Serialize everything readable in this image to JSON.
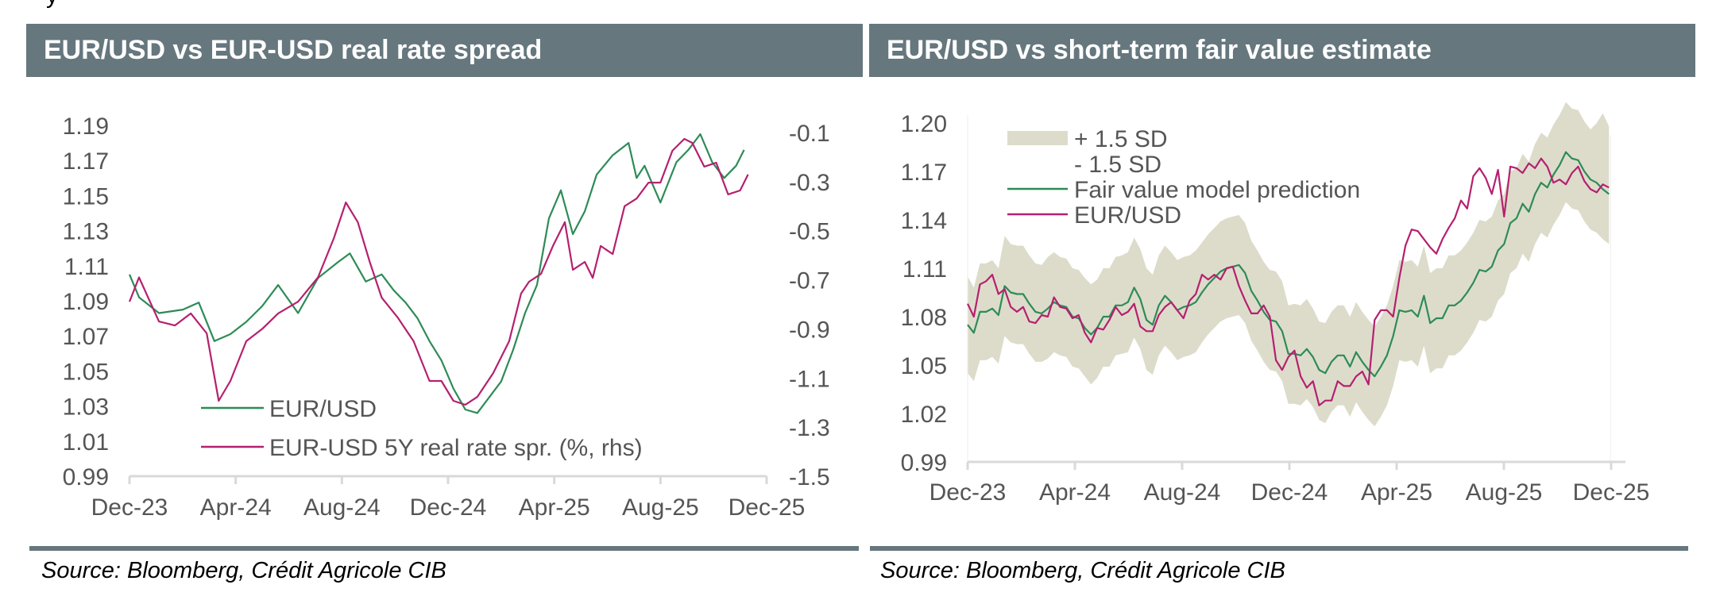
{
  "page": {
    "stray_fragment": "y"
  },
  "colors": {
    "header_bg": "#66777e",
    "green": "#2e8b57",
    "magenta": "#b5206f",
    "band": "#dddccb",
    "axis": "#d9d9d9",
    "tick_text": "#555555"
  },
  "panels": [
    {
      "title": "EUR/USD vs EUR-USD real rate spread",
      "source": "Source: Bloomberg, Crédit Agricole CIB"
    },
    {
      "title": "EUR/USD vs short-term fair value estimate",
      "source": "Source: Bloomberg, Crédit Agricole CIB"
    }
  ],
  "chart_data": [
    {
      "type": "line",
      "title": "EUR/USD vs EUR-USD real rate spread",
      "xlabel": "",
      "ylabel": "",
      "x_tick_labels": [
        "Dec-23",
        "Apr-24",
        "Aug-24",
        "Dec-24",
        "Apr-25",
        "Aug-25",
        "Dec-25"
      ],
      "ylim": [
        0.99,
        1.19
      ],
      "y_tick_labels": [
        "1.19",
        "1.17",
        "1.15",
        "1.13",
        "1.11",
        "1.09",
        "1.07",
        "1.05",
        "1.03",
        "1.01",
        "0.99"
      ],
      "y2lim": [
        -1.5,
        -0.1
      ],
      "y2_tick_labels": [
        "-0.1",
        "-0.3",
        "-0.5",
        "-0.7",
        "-0.9",
        "-1.1",
        "-1.3",
        "-1.5"
      ],
      "x_range_months": [
        0,
        24
      ],
      "grid": false,
      "legend_position": "bottom-left",
      "series": [
        {
          "name": "EUR/USD",
          "axis": "left",
          "color": "#2e8b57",
          "x_months": [
            0.0,
            0.36,
            1.11,
            2.01,
            2.61,
            3.2,
            3.8,
            4.4,
            5.0,
            5.6,
            6.35,
            7.1,
            7.85,
            8.3,
            8.9,
            9.5,
            9.95,
            10.4,
            10.85,
            11.3,
            11.75,
            12.2,
            12.65,
            13.1,
            13.55,
            14.0,
            14.45,
            14.9,
            15.35,
            15.8,
            16.25,
            16.7,
            17.15,
            17.6,
            18.2,
            18.8,
            19.1,
            19.4,
            20.0,
            20.6,
            21.05,
            21.5,
            21.95,
            22.4,
            22.85,
            23.15
          ],
          "values": [
            1.105,
            1.092,
            1.083,
            1.085,
            1.089,
            1.067,
            1.071,
            1.078,
            1.087,
            1.099,
            1.083,
            1.103,
            1.112,
            1.117,
            1.101,
            1.105,
            1.096,
            1.089,
            1.08,
            1.067,
            1.056,
            1.04,
            1.028,
            1.026,
            1.035,
            1.044,
            1.062,
            1.083,
            1.099,
            1.137,
            1.153,
            1.128,
            1.141,
            1.162,
            1.173,
            1.18,
            1.16,
            1.167,
            1.146,
            1.169,
            1.176,
            1.185,
            1.169,
            1.16,
            1.167,
            1.176
          ]
        },
        {
          "name": "EUR-USD 5Y real rate spr. (%, rhs)",
          "axis": "right",
          "color": "#b5206f",
          "x_months": [
            0.0,
            0.36,
            1.11,
            1.71,
            2.31,
            2.91,
            3.36,
            3.8,
            4.4,
            5.0,
            5.6,
            6.35,
            7.1,
            7.7,
            8.15,
            8.6,
            9.05,
            9.5,
            10.1,
            10.7,
            11.3,
            11.75,
            12.2,
            12.65,
            13.1,
            13.7,
            14.3,
            14.75,
            15.05,
            15.5,
            15.95,
            16.4,
            16.7,
            17.15,
            17.45,
            17.75,
            18.2,
            18.65,
            19.1,
            19.55,
            20.0,
            20.45,
            20.9,
            21.2,
            21.65,
            22.1,
            22.55,
            23.0,
            23.3
          ],
          "values": [
            -0.789,
            -0.69,
            -0.87,
            -0.886,
            -0.837,
            -0.918,
            -1.193,
            -1.112,
            -0.95,
            -0.9,
            -0.837,
            -0.789,
            -0.69,
            -0.53,
            -0.385,
            -0.465,
            -0.627,
            -0.773,
            -0.853,
            -0.95,
            -1.112,
            -1.112,
            -1.193,
            -1.209,
            -1.177,
            -1.08,
            -0.95,
            -0.756,
            -0.708,
            -0.676,
            -0.562,
            -0.465,
            -0.659,
            -0.627,
            -0.692,
            -0.562,
            -0.595,
            -0.4,
            -0.369,
            -0.304,
            -0.304,
            -0.174,
            -0.126,
            -0.142,
            -0.239,
            -0.223,
            -0.352,
            -0.336,
            -0.271
          ]
        }
      ]
    },
    {
      "type": "area",
      "title": "EUR/USD vs short-term fair value estimate",
      "xlabel": "",
      "ylabel": "",
      "x_tick_labels": [
        "Dec-23",
        "Apr-24",
        "Aug-24",
        "Dec-24",
        "Apr-25",
        "Aug-25",
        "Dec-25"
      ],
      "ylim": [
        0.99,
        1.2
      ],
      "y_tick_labels": [
        "1.20",
        "1.17",
        "1.14",
        "1.11",
        "1.08",
        "1.05",
        "1.02",
        "0.99"
      ],
      "x_range_months": [
        0,
        24
      ],
      "grid": false,
      "legend_position": "top-left",
      "legend": [
        "+ 1.5 SD",
        "- 1.5 SD",
        "Fair value model prediction",
        "EUR/USD"
      ],
      "x_months": [
        0.0,
        0.23,
        0.46,
        0.69,
        0.92,
        1.15,
        1.38,
        1.61,
        1.84,
        2.07,
        2.3,
        2.53,
        2.76,
        2.99,
        3.22,
        3.45,
        3.68,
        3.91,
        4.14,
        4.37,
        4.6,
        4.83,
        5.06,
        5.29,
        5.52,
        5.75,
        5.98,
        6.21,
        6.44,
        6.67,
        6.9,
        7.13,
        7.36,
        7.59,
        7.82,
        8.05,
        8.28,
        8.51,
        8.74,
        8.97,
        9.2,
        9.43,
        9.66,
        9.89,
        10.12,
        10.35,
        10.58,
        10.81,
        11.04,
        11.27,
        11.5,
        11.73,
        11.96,
        12.19,
        12.42,
        12.65,
        12.88,
        13.11,
        13.34,
        13.57,
        13.8,
        14.03,
        14.26,
        14.49,
        14.72,
        14.95,
        15.18,
        15.41,
        15.64,
        15.87,
        16.1,
        16.33,
        16.56,
        16.79,
        17.02,
        17.25,
        17.48,
        17.71,
        17.94,
        18.17,
        18.4,
        18.63,
        18.86,
        19.09,
        19.32,
        19.55,
        19.78,
        20.01,
        20.24,
        20.47,
        20.7,
        20.93,
        21.16,
        21.39,
        21.62,
        21.85,
        22.08,
        22.31,
        22.54,
        22.77,
        23.0,
        23.23,
        23.46,
        23.69,
        23.92
      ],
      "series": [
        {
          "name": "Fair value model prediction",
          "color": "#2e8b57",
          "values": [
            1.075,
            1.07,
            1.083,
            1.083,
            1.085,
            1.081,
            1.099,
            1.095,
            1.094,
            1.094,
            1.088,
            1.083,
            1.082,
            1.085,
            1.089,
            1.087,
            1.086,
            1.08,
            1.079,
            1.073,
            1.069,
            1.073,
            1.08,
            1.08,
            1.087,
            1.087,
            1.089,
            1.098,
            1.091,
            1.078,
            1.075,
            1.087,
            1.093,
            1.089,
            1.084,
            1.086,
            1.087,
            1.089,
            1.095,
            1.1,
            1.104,
            1.108,
            1.11,
            1.111,
            1.112,
            1.107,
            1.096,
            1.09,
            1.083,
            1.078,
            1.077,
            1.071,
            1.057,
            1.057,
            1.056,
            1.06,
            1.055,
            1.047,
            1.045,
            1.052,
            1.056,
            1.056,
            1.049,
            1.058,
            1.052,
            1.047,
            1.043,
            1.049,
            1.056,
            1.068,
            1.084,
            1.083,
            1.084,
            1.08,
            1.093,
            1.076,
            1.079,
            1.079,
            1.087,
            1.087,
            1.09,
            1.095,
            1.101,
            1.109,
            1.108,
            1.111,
            1.121,
            1.125,
            1.138,
            1.141,
            1.15,
            1.145,
            1.156,
            1.163,
            1.16,
            1.168,
            1.174,
            1.182,
            1.178,
            1.177,
            1.17,
            1.165,
            1.163,
            1.159,
            1.156
          ]
        },
        {
          "name": "EUR/USD",
          "color": "#b5206f",
          "values": [
            1.088,
            1.08,
            1.1,
            1.102,
            1.106,
            1.094,
            1.097,
            1.086,
            1.083,
            1.086,
            1.077,
            1.076,
            1.081,
            1.08,
            1.092,
            1.086,
            1.085,
            1.079,
            1.081,
            1.07,
            1.064,
            1.073,
            1.072,
            1.078,
            1.086,
            1.081,
            1.083,
            1.088,
            1.074,
            1.071,
            1.071,
            1.081,
            1.086,
            1.089,
            1.084,
            1.079,
            1.09,
            1.094,
            1.106,
            1.103,
            1.106,
            1.103,
            1.11,
            1.111,
            1.099,
            1.09,
            1.082,
            1.082,
            1.087,
            1.08,
            1.053,
            1.047,
            1.055,
            1.059,
            1.043,
            1.036,
            1.04,
            1.025,
            1.028,
            1.028,
            1.04,
            1.037,
            1.037,
            1.043,
            1.046,
            1.038,
            1.078,
            1.084,
            1.084,
            1.08,
            1.104,
            1.124,
            1.134,
            1.133,
            1.128,
            1.123,
            1.119,
            1.128,
            1.135,
            1.141,
            1.152,
            1.147,
            1.167,
            1.172,
            1.166,
            1.156,
            1.171,
            1.142,
            1.173,
            1.172,
            1.169,
            1.175,
            1.172,
            1.178,
            1.173,
            1.163,
            1.165,
            1.162,
            1.169,
            1.173,
            1.164,
            1.159,
            1.157,
            1.162,
            1.16
          ]
        }
      ],
      "band": {
        "name": "+/- 1.5 SD",
        "color": "#dddccb",
        "upper": [
          1.105,
          1.098,
          1.113,
          1.113,
          1.115,
          1.11,
          1.13,
          1.125,
          1.124,
          1.124,
          1.118,
          1.113,
          1.112,
          1.117,
          1.12,
          1.117,
          1.116,
          1.11,
          1.109,
          1.104,
          1.1,
          1.103,
          1.11,
          1.11,
          1.117,
          1.118,
          1.12,
          1.129,
          1.122,
          1.11,
          1.106,
          1.118,
          1.124,
          1.12,
          1.115,
          1.117,
          1.118,
          1.121,
          1.126,
          1.131,
          1.135,
          1.139,
          1.141,
          1.142,
          1.143,
          1.138,
          1.127,
          1.121,
          1.114,
          1.109,
          1.108,
          1.102,
          1.087,
          1.088,
          1.087,
          1.091,
          1.085,
          1.077,
          1.076,
          1.083,
          1.087,
          1.087,
          1.08,
          1.089,
          1.083,
          1.078,
          1.074,
          1.08,
          1.087,
          1.099,
          1.115,
          1.114,
          1.115,
          1.111,
          1.124,
          1.107,
          1.11,
          1.11,
          1.118,
          1.118,
          1.121,
          1.126,
          1.132,
          1.14,
          1.139,
          1.142,
          1.152,
          1.156,
          1.17,
          1.172,
          1.181,
          1.176,
          1.187,
          1.194,
          1.191,
          1.199,
          1.205,
          1.213,
          1.209,
          1.208,
          1.201,
          1.196,
          1.2,
          1.206,
          1.198
        ],
        "lower": [
          1.045,
          1.04,
          1.053,
          1.053,
          1.055,
          1.051,
          1.068,
          1.064,
          1.063,
          1.063,
          1.057,
          1.052,
          1.052,
          1.054,
          1.058,
          1.056,
          1.055,
          1.049,
          1.048,
          1.043,
          1.038,
          1.042,
          1.049,
          1.049,
          1.056,
          1.057,
          1.058,
          1.067,
          1.06,
          1.047,
          1.044,
          1.056,
          1.062,
          1.058,
          1.053,
          1.055,
          1.056,
          1.058,
          1.064,
          1.069,
          1.073,
          1.077,
          1.079,
          1.08,
          1.081,
          1.076,
          1.065,
          1.059,
          1.052,
          1.047,
          1.046,
          1.04,
          1.026,
          1.026,
          1.025,
          1.029,
          1.024,
          1.016,
          1.014,
          1.021,
          1.025,
          1.025,
          1.018,
          1.027,
          1.021,
          1.016,
          1.012,
          1.018,
          1.025,
          1.037,
          1.053,
          1.052,
          1.053,
          1.049,
          1.062,
          1.045,
          1.048,
          1.048,
          1.056,
          1.056,
          1.059,
          1.064,
          1.07,
          1.078,
          1.077,
          1.08,
          1.09,
          1.094,
          1.107,
          1.11,
          1.119,
          1.114,
          1.125,
          1.132,
          1.129,
          1.137,
          1.143,
          1.151,
          1.147,
          1.146,
          1.139,
          1.134,
          1.132,
          1.128,
          1.125
        ]
      }
    }
  ]
}
